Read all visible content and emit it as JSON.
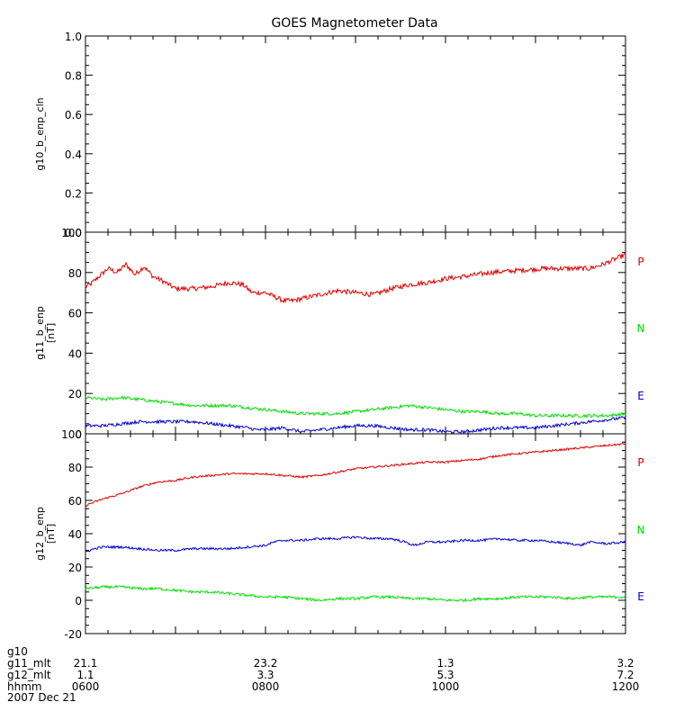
{
  "title": "GOES Magnetometer Data",
  "chart_data": [
    {
      "type": "line",
      "ylabel": "g10_b_enp_cln",
      "unit": "",
      "xlim": [
        600,
        1200
      ],
      "ylim": [
        0,
        1.0
      ],
      "yticks": [
        0.0,
        0.2,
        0.4,
        0.6,
        0.8,
        1.0
      ],
      "ytick_labels": [
        "0.0",
        "0.2",
        "0.4",
        "0.6",
        "0.8",
        "1.0"
      ],
      "series": []
    },
    {
      "type": "line",
      "ylabel": "g11_b_enp",
      "unit": "[nT]",
      "xlim": [
        600,
        1200
      ],
      "ylim": [
        0,
        100
      ],
      "yticks": [
        0,
        20,
        40,
        60,
        80,
        100
      ],
      "ytick_labels": [
        "0",
        "20",
        "40",
        "60",
        "80",
        "100"
      ],
      "series": [
        {
          "name": "P",
          "color": "#dd0000",
          "noise": 1.2,
          "x": [
            600,
            605,
            615,
            625,
            635,
            645,
            655,
            665,
            675,
            685,
            700,
            720,
            740,
            760,
            775,
            785,
            800,
            810,
            820,
            830,
            840,
            860,
            880,
            900,
            920,
            940,
            960,
            980,
            1000,
            1020,
            1050,
            1080,
            1110,
            1140,
            1160,
            1175,
            1190,
            1200
          ],
          "y": [
            73,
            74,
            78,
            82,
            80,
            84,
            79,
            83,
            78,
            76,
            72,
            72,
            73,
            75,
            74,
            70,
            70,
            68,
            66,
            66,
            67,
            69,
            71,
            70,
            69,
            72,
            74,
            75,
            77,
            78,
            80,
            81,
            82,
            82,
            82,
            84,
            87,
            89
          ]
        },
        {
          "name": "N",
          "color": "#00dd00",
          "noise": 0.8,
          "x": [
            600,
            620,
            640,
            660,
            680,
            700,
            720,
            740,
            760,
            780,
            800,
            820,
            840,
            860,
            880,
            900,
            920,
            940,
            960,
            980,
            1000,
            1020,
            1040,
            1060,
            1080,
            1100,
            1120,
            1140,
            1160,
            1180,
            1200
          ],
          "y": [
            18,
            17,
            18,
            17,
            16,
            15,
            14,
            14,
            14,
            13,
            12,
            11,
            10,
            10,
            10,
            11,
            12,
            13,
            14,
            13,
            12,
            11,
            11,
            10,
            10,
            9,
            9,
            9,
            9,
            9,
            10
          ]
        },
        {
          "name": "E",
          "color": "#0000cc",
          "noise": 0.8,
          "x": [
            600,
            620,
            640,
            660,
            680,
            700,
            720,
            740,
            760,
            780,
            790,
            800,
            820,
            830,
            840,
            860,
            880,
            900,
            920,
            940,
            960,
            980,
            1000,
            1020,
            1040,
            1060,
            1080,
            1100,
            1120,
            1140,
            1160,
            1180,
            1200
          ],
          "y": [
            4,
            4,
            5,
            6,
            6,
            6,
            6,
            5,
            4,
            3,
            2,
            2,
            3,
            2,
            1,
            2,
            3,
            4,
            4,
            3,
            2,
            2,
            1,
            1,
            2,
            3,
            3,
            3,
            4,
            5,
            6,
            7,
            8
          ]
        }
      ],
      "legend_labels": [
        "P",
        "N",
        "E"
      ],
      "legend_placement": "right"
    },
    {
      "type": "line",
      "ylabel": "g12_b_enp",
      "unit": "[nT]",
      "xlim": [
        600,
        1200
      ],
      "ylim": [
        -20,
        100
      ],
      "yticks": [
        -20,
        0,
        20,
        40,
        60,
        80,
        100
      ],
      "ytick_labels": [
        "-20",
        "0",
        "20",
        "40",
        "60",
        "80",
        "100"
      ],
      "series": [
        {
          "name": "P",
          "color": "#dd0000",
          "noise": 0.6,
          "x": [
            600,
            620,
            640,
            660,
            680,
            700,
            720,
            740,
            760,
            780,
            800,
            820,
            840,
            860,
            880,
            900,
            920,
            940,
            960,
            980,
            1000,
            1020,
            1040,
            1060,
            1080,
            1100,
            1120,
            1140,
            1160,
            1180,
            1200
          ],
          "y": [
            57,
            61,
            64,
            68,
            71,
            72,
            74,
            75,
            76,
            76,
            76,
            75,
            74,
            75,
            77,
            79,
            80,
            81,
            82,
            83,
            83,
            84,
            85,
            87,
            88,
            89,
            90,
            91,
            92,
            93,
            94
          ]
        },
        {
          "name": "N",
          "color": "#00dd00",
          "noise": 0.8,
          "x": [
            600,
            620,
            640,
            660,
            680,
            700,
            720,
            740,
            760,
            780,
            800,
            820,
            840,
            860,
            880,
            900,
            920,
            940,
            960,
            980,
            1000,
            1020,
            1040,
            1060,
            1080,
            1100,
            1120,
            1140,
            1160,
            1180,
            1200
          ],
          "y": [
            7,
            8,
            8,
            7,
            7,
            6,
            5,
            5,
            4,
            3,
            2,
            2,
            1,
            0,
            1,
            1,
            2,
            2,
            1,
            1,
            0,
            0,
            1,
            1,
            2,
            2,
            2,
            1,
            2,
            2,
            2
          ]
        },
        {
          "name": "E",
          "color": "#0000cc",
          "noise": 0.7,
          "x": [
            600,
            610,
            620,
            640,
            660,
            680,
            700,
            720,
            740,
            760,
            780,
            800,
            810,
            820,
            840,
            860,
            880,
            900,
            920,
            940,
            955,
            965,
            980,
            1000,
            1020,
            1040,
            1060,
            1080,
            1100,
            1120,
            1140,
            1150,
            1160,
            1180,
            1200
          ],
          "y": [
            29,
            31,
            32,
            32,
            31,
            30,
            30,
            31,
            31,
            31,
            32,
            33,
            35,
            36,
            36,
            37,
            37,
            38,
            37,
            37,
            35,
            33,
            35,
            35,
            36,
            36,
            37,
            36,
            36,
            35,
            34,
            33,
            35,
            34,
            35
          ]
        }
      ],
      "legend_labels": [
        "P",
        "N",
        "E"
      ],
      "legend_placement": "right"
    }
  ],
  "footer": {
    "rows": [
      {
        "label": "g10",
        "values": [
          "",
          "",
          "",
          ""
        ]
      },
      {
        "label": "g11_mlt",
        "values": [
          "21.1",
          "23.2",
          "1.3",
          "3.2"
        ]
      },
      {
        "label": "g12_mlt",
        "values": [
          "1.1",
          "3.3",
          "5.3",
          "7.2"
        ]
      },
      {
        "label": "hhmm",
        "values": [
          "0600",
          "0800",
          "1000",
          "1200"
        ]
      }
    ],
    "date": "2007 Dec 21",
    "positions": [
      600,
      800,
      1000,
      1200
    ]
  }
}
